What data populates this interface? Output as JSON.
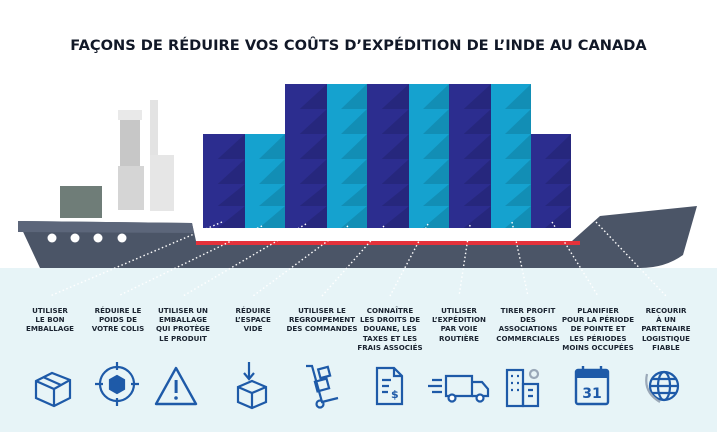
{
  "title": "FAÇONS DE RÉDUIRE VOS COÛTS D’EXPÉDITION DE L’INDE AU CANADA",
  "tips": [
    {
      "label": "UTILISER\nLE BON\nEMBALLAGE",
      "icon": "package-box-icon"
    },
    {
      "label": "RÉDUIRE LE\nPOIDS DE\nVOTRE COLIS",
      "icon": "target-box-icon"
    },
    {
      "label": "UTILISER UN\nEMBALLAGE\nQUI PROTÈGE\nLE PRODUIT",
      "icon": "warning-triangle-icon"
    },
    {
      "label": "RÉDUIRE\nL’ESPACE\nVIDE",
      "icon": "compress-box-icon"
    },
    {
      "label": "UTILISER LE\nREGROUPEMENT\nDES COMMANDES",
      "icon": "hand-truck-icon"
    },
    {
      "label": "CONNAÎTRE\nLES DROITS DE\nDOUANE, LES\nTAXES ET LES\nFRAIS ASSOCIÉS",
      "icon": "invoice-document-icon"
    },
    {
      "label": "UTILISER\nL’EXPÉDITION\nPAR VOIE\nROUTIÈRE",
      "icon": "fast-truck-icon"
    },
    {
      "label": "TIRER PROFIT\nDES\nASSOCIATIONS\nCOMMERCIALES",
      "icon": "office-building-icon"
    },
    {
      "label": "PLANIFIER\nPOUR LA PÉRIODE\nDE POINTE ET\nLES PÉRIODES\nMOINS OCCUPÉES",
      "icon": "calendar-icon"
    },
    {
      "label": "RECOURIR\nÀ UN\nPARTENAIRE\nLOGISTIQUE\nFIABLE",
      "icon": "globe-icon"
    }
  ],
  "calendar_day": "31",
  "colors": {
    "navy": "#2c2d8f",
    "cyan": "#15a2cf",
    "hull": "#4b5567",
    "redline": "#e5323b",
    "sea": "#e7f4f7",
    "icon": "#1e5aa8"
  }
}
